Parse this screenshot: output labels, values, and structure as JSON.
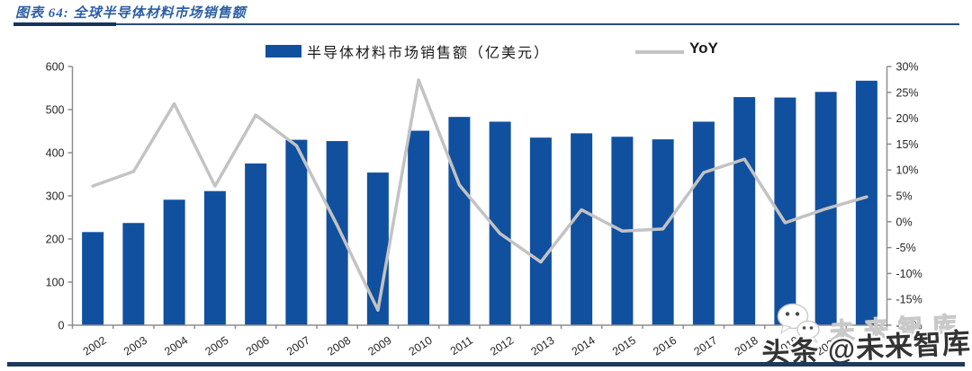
{
  "header": {
    "title": "图表 64: 全球半导体材料市场销售额"
  },
  "legend": {
    "bar_label": "半导体材料市场销售额（亿美元）",
    "line_label": "YoY"
  },
  "chart_data": {
    "type": "bar",
    "title": "全球半导体材料市场销售额",
    "categories": [
      "2002",
      "2003",
      "2004",
      "2005",
      "2006",
      "2007",
      "2008",
      "2009",
      "2010",
      "2011",
      "2012",
      "2013",
      "2014",
      "2015",
      "2016",
      "2017",
      "2018",
      "2019",
      "2020",
      "2021"
    ],
    "series": [
      {
        "name": "半导体材料市场销售额（亿美元）",
        "type": "bar",
        "axis": "left",
        "values": [
          216,
          237,
          291,
          311,
          375,
          430,
          427,
          354,
          451,
          483,
          472,
          435,
          445,
          437,
          431,
          472,
          529,
          528,
          541,
          567
        ]
      },
      {
        "name": "YoY",
        "type": "line",
        "axis": "right",
        "unit": "%",
        "values": [
          6.9,
          9.7,
          22.8,
          6.9,
          20.6,
          14.7,
          -0.7,
          -17.1,
          27.4,
          7.1,
          -2.3,
          -7.8,
          2.3,
          -1.8,
          -1.4,
          9.5,
          12.1,
          -0.2,
          2.5,
          4.8
        ]
      }
    ],
    "left_axis": {
      "min": 0,
      "max": 600,
      "step": 100,
      "tick_labels": [
        "600",
        "500",
        "400",
        "300",
        "200",
        "100",
        "0"
      ]
    },
    "right_axis": {
      "min": -20,
      "max": 30,
      "step": 5,
      "tick_labels": [
        "30%",
        "25%",
        "20%",
        "15%",
        "10%",
        "5%",
        "0%",
        "-5%",
        "-10%",
        "-15%",
        "-20%"
      ]
    },
    "grid": false,
    "legend_position": "top"
  },
  "watermark": {
    "row1": "未来智库",
    "row2": "头条 @未来智库"
  },
  "colors": {
    "bar": "#11509F",
    "line": "#C3C3C3",
    "axis": "#8E8E8E",
    "tick_label": "#262626",
    "title": "#2E5FA3",
    "divider": "#1E3A5F",
    "footer_bar": "#1E3A5F"
  }
}
